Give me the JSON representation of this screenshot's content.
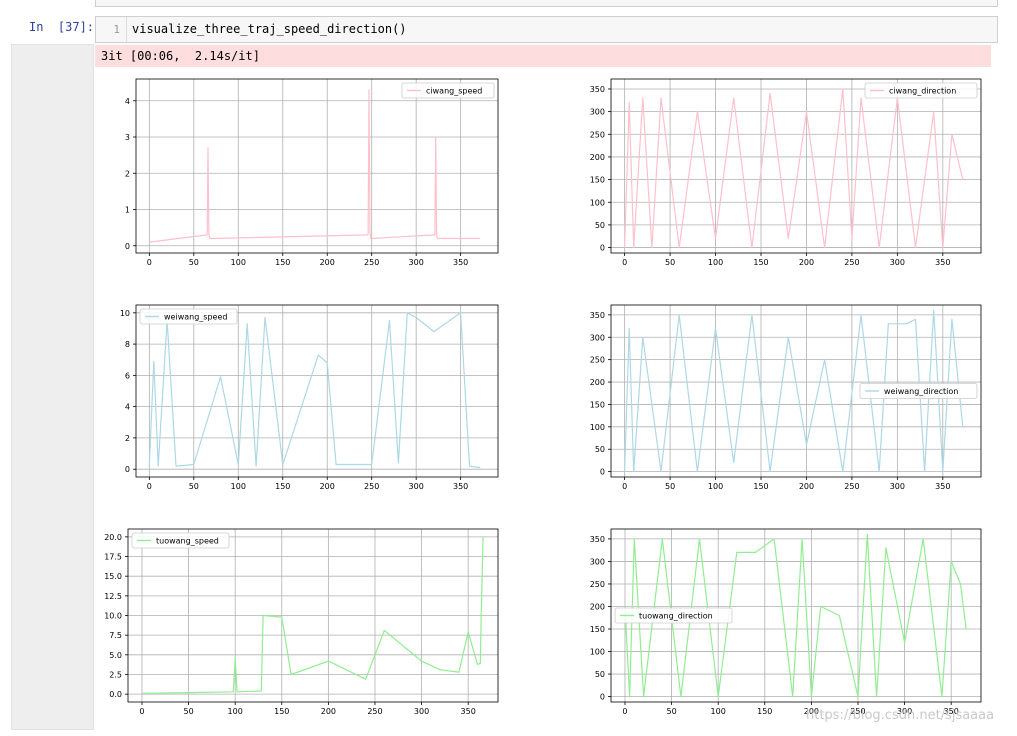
{
  "cell": {
    "prompt": "In  [37]:",
    "line_number": "1",
    "code": "visualize_three_traj_speed_direction()"
  },
  "output": {
    "progress_text": "3it [00:06,  2.14s/it]"
  },
  "watermark": "https://blog.csdn.net/sjsaaaa",
  "chart_data": [
    {
      "type": "line",
      "name": "ciwang_speed",
      "color": "#ffc0cb",
      "legend_loc": "upper right",
      "xlim": [
        -15,
        392
      ],
      "ylim": [
        -0.2,
        4.6
      ],
      "grid": true,
      "xticks": [
        0,
        50,
        100,
        150,
        200,
        250,
        300,
        350
      ],
      "yticks": [
        0,
        1,
        2,
        3,
        4
      ],
      "series": [
        {
          "name": "ciwang_speed",
          "x": [
            0,
            65,
            66,
            67,
            68,
            246,
            247,
            248,
            249,
            321,
            322,
            323,
            324,
            372
          ],
          "y": [
            0.1,
            0.3,
            2.7,
            0.3,
            0.2,
            0.3,
            4.3,
            0.4,
            0.2,
            0.3,
            3.0,
            0.3,
            0.2,
            0.2
          ]
        }
      ]
    },
    {
      "type": "line",
      "name": "ciwang_direction",
      "color": "#ffc0cb",
      "legend_loc": "upper right",
      "xlim": [
        -15,
        392
      ],
      "ylim": [
        -12,
        372
      ],
      "grid": true,
      "xticks": [
        0,
        50,
        100,
        150,
        200,
        250,
        300,
        350
      ],
      "yticks": [
        0,
        50,
        100,
        150,
        200,
        250,
        300,
        350
      ],
      "series": [
        {
          "name": "ciwang_direction",
          "x": [
            0,
            5,
            10,
            20,
            30,
            40,
            60,
            80,
            100,
            120,
            140,
            160,
            180,
            200,
            220,
            240,
            250,
            260,
            280,
            300,
            320,
            340,
            350,
            360,
            372
          ],
          "y": [
            0,
            320,
            0,
            330,
            0,
            330,
            0,
            300,
            20,
            330,
            0,
            340,
            20,
            300,
            0,
            350,
            20,
            330,
            0,
            330,
            0,
            300,
            0,
            250,
            150
          ]
        }
      ]
    },
    {
      "type": "line",
      "name": "weiwang_speed",
      "color": "#add8e6",
      "legend_loc": "upper left",
      "xlim": [
        -15,
        392
      ],
      "ylim": [
        -0.5,
        10.5
      ],
      "grid": true,
      "xticks": [
        0,
        50,
        100,
        150,
        200,
        250,
        300,
        350
      ],
      "yticks": [
        0,
        2,
        4,
        6,
        8,
        10
      ],
      "series": [
        {
          "name": "weiwang_speed",
          "x": [
            0,
            5,
            10,
            20,
            30,
            50,
            80,
            100,
            110,
            120,
            130,
            150,
            190,
            200,
            210,
            250,
            270,
            280,
            290,
            300,
            320,
            340,
            350,
            360,
            372
          ],
          "y": [
            0.2,
            6.9,
            0.2,
            9.5,
            0.2,
            0.3,
            5.9,
            0.3,
            9.3,
            0.2,
            9.7,
            0.3,
            7.3,
            6.8,
            0.3,
            0.3,
            9.5,
            0.4,
            10.0,
            9.7,
            8.8,
            9.6,
            10.0,
            0.2,
            0.1
          ]
        }
      ]
    },
    {
      "type": "line",
      "name": "weiwang_direction",
      "color": "#add8e6",
      "legend_loc": "center right",
      "xlim": [
        -15,
        392
      ],
      "ylim": [
        -12,
        372
      ],
      "grid": true,
      "xticks": [
        0,
        50,
        100,
        150,
        200,
        250,
        300,
        350
      ],
      "yticks": [
        0,
        50,
        100,
        150,
        200,
        250,
        300,
        350
      ],
      "series": [
        {
          "name": "weiwang_direction",
          "x": [
            0,
            5,
            10,
            20,
            40,
            60,
            80,
            100,
            120,
            140,
            160,
            180,
            200,
            220,
            240,
            260,
            280,
            290,
            310,
            320,
            330,
            340,
            350,
            360,
            372
          ],
          "y": [
            0,
            320,
            0,
            300,
            0,
            350,
            0,
            320,
            20,
            350,
            0,
            300,
            60,
            250,
            0,
            350,
            0,
            330,
            330,
            340,
            0,
            360,
            0,
            340,
            100
          ]
        }
      ]
    },
    {
      "type": "line",
      "name": "tuowang_speed",
      "color": "#90ee90",
      "legend_loc": "upper left",
      "xlim": [
        -15,
        382
      ],
      "ylim": [
        -1,
        21
      ],
      "grid": true,
      "xticks": [
        0,
        50,
        100,
        150,
        200,
        250,
        300,
        350
      ],
      "yticks": [
        0.0,
        2.5,
        5.0,
        7.5,
        10.0,
        12.5,
        15.0,
        17.5,
        20.0
      ],
      "series": [
        {
          "name": "tuowang_speed",
          "x": [
            0,
            50,
            98,
            100,
            102,
            128,
            130,
            150,
            160,
            200,
            240,
            260,
            300,
            320,
            340,
            350,
            360,
            363,
            364,
            366
          ],
          "y": [
            0.1,
            0.2,
            0.3,
            4.6,
            0.3,
            0.4,
            10.0,
            9.8,
            2.5,
            4.2,
            1.9,
            8.1,
            4.2,
            3.1,
            2.8,
            7.9,
            3.8,
            3.9,
            10.0,
            20.0
          ]
        }
      ]
    },
    {
      "type": "line",
      "name": "tuowang_direction",
      "color": "#90ee90",
      "legend_loc": "center left",
      "xlim": [
        -15,
        382
      ],
      "ylim": [
        -12,
        372
      ],
      "grid": true,
      "xticks": [
        0,
        50,
        100,
        150,
        200,
        250,
        300,
        350
      ],
      "yticks": [
        0,
        50,
        100,
        150,
        200,
        250,
        300,
        350
      ],
      "series": [
        {
          "name": "tuowang_direction",
          "x": [
            0,
            5,
            10,
            20,
            40,
            60,
            80,
            100,
            120,
            140,
            160,
            180,
            190,
            200,
            210,
            230,
            250,
            260,
            270,
            280,
            300,
            320,
            340,
            350,
            360,
            366
          ],
          "y": [
            200,
            0,
            350,
            0,
            350,
            0,
            350,
            0,
            320,
            320,
            350,
            0,
            350,
            0,
            200,
            180,
            0,
            360,
            0,
            330,
            120,
            350,
            0,
            300,
            250,
            150
          ]
        }
      ]
    }
  ]
}
